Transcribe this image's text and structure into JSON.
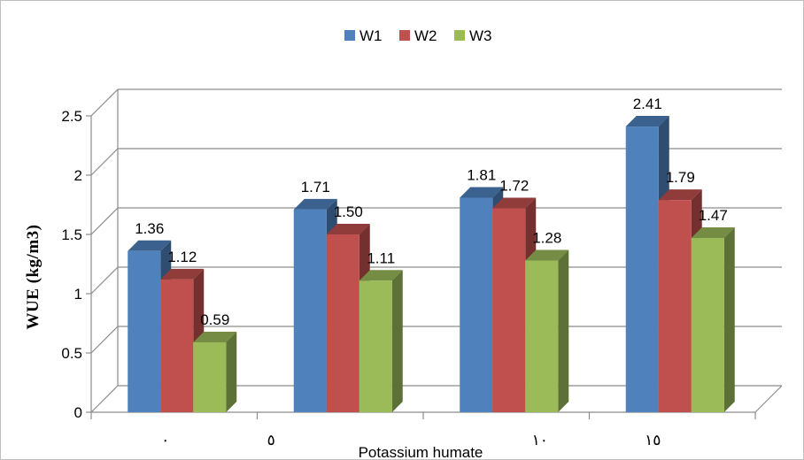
{
  "chart_data": {
    "type": "bar",
    "title": "",
    "xlabel": "Potassium humate",
    "ylabel": "WUE  (kg/m3)",
    "categories": [
      "٠",
      "٥",
      "١٠",
      "١٥"
    ],
    "series": [
      {
        "name": "W1",
        "values": [
          1.36,
          1.71,
          1.81,
          2.41
        ],
        "labels": [
          "1.36",
          "1.71",
          "1.81",
          "2.41"
        ],
        "color": "#4f81bd"
      },
      {
        "name": "W2",
        "values": [
          1.12,
          1.5,
          1.72,
          1.79
        ],
        "labels": [
          "1.12",
          "1.50",
          "1.72",
          "1.79"
        ],
        "color": "#c0504d"
      },
      {
        "name": "W3",
        "values": [
          0.59,
          1.11,
          1.28,
          1.47
        ],
        "labels": [
          "0.59",
          "1.11",
          "1.28",
          "1.47"
        ],
        "color": "#9bbb59"
      }
    ],
    "ylim": [
      0,
      2.5
    ],
    "yticks": [
      "0",
      "0.5",
      "1",
      "1.5",
      "2",
      "2.5"
    ],
    "grid": true,
    "legend": "top-center",
    "style": "3d-clustered-column"
  }
}
